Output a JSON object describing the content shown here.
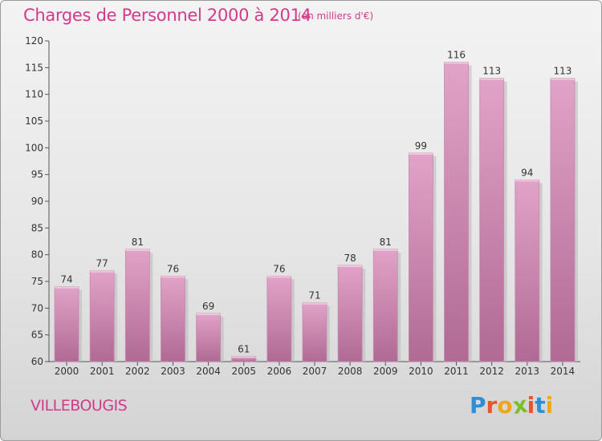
{
  "header": {
    "title": "Charges de Personnel 2000 à 2014",
    "unit": "(en milliers d'€)"
  },
  "footer": {
    "city": "VILLEBOUGIS",
    "brand": "Proxiti",
    "brand_letters": [
      "P",
      "r",
      "o",
      "x",
      "i",
      "t",
      "i"
    ],
    "brand_colors": [
      "#2f8fd6",
      "#e8552d",
      "#f2a51a",
      "#7bbf2a",
      "#e8552d",
      "#2f8fd6",
      "#f2a51a"
    ]
  },
  "colors": {
    "bar_top": "#e2a3c8",
    "bar_bottom": "#b06a94",
    "title": "#d23a8a"
  },
  "chart_data": {
    "type": "bar",
    "title": "Charges de Personnel 2000 à 2014",
    "subtitle": "(en milliers d'€)",
    "xlabel": "",
    "ylabel": "",
    "categories": [
      "2000",
      "2001",
      "2002",
      "2003",
      "2004",
      "2005",
      "2006",
      "2007",
      "2008",
      "2009",
      "2010",
      "2011",
      "2012",
      "2013",
      "2014"
    ],
    "values": [
      74,
      77,
      81,
      76,
      69,
      61,
      76,
      71,
      78,
      81,
      99,
      116,
      113,
      94,
      113
    ],
    "ylim": [
      60,
      120
    ],
    "yticks": [
      60,
      65,
      70,
      75,
      80,
      85,
      90,
      95,
      100,
      105,
      110,
      115,
      120
    ],
    "grid": false,
    "data_labels": true
  }
}
